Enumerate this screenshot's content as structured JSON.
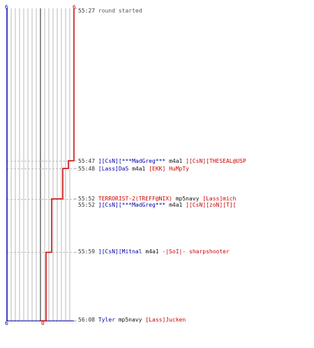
{
  "colors": {
    "team1": "#0000aa",
    "team2": "#cc0000",
    "grid": "#b8b8b8",
    "center": "#666666",
    "dashed": "#c0c0c0",
    "time": "#333333"
  },
  "axis": {
    "top_left": "6",
    "top_right": "6",
    "bottom_left": "6",
    "bottom_right": "0"
  },
  "start_event": {
    "time": "55:27",
    "text": "round started"
  },
  "events": [
    {
      "time": "55:47",
      "killer": "][CsN][***MadGreg***",
      "weapon": "m4a1",
      "victim": "][CsN][THESEAL@USP",
      "killer_team": "blue",
      "victim_team": "red"
    },
    {
      "time": "55:48",
      "killer": "[Lass]DaS",
      "weapon": "m4a1",
      "victim": "[EKK] HuMpTy",
      "killer_team": "blue",
      "victim_team": "red"
    },
    {
      "time": "55:52",
      "killer": "TERRORIST-2(TREFF@NIX)",
      "weapon": "mp5navy",
      "victim": "[Lass]mich",
      "killer_team": "red",
      "victim_team": "red"
    },
    {
      "time": "55:52",
      "killer": "][CsN][***MadGreg***",
      "weapon": "m4a1",
      "victim": "][CsN][zoN][T][",
      "killer_team": "blue",
      "victim_team": "red"
    },
    {
      "time": "55:59",
      "killer": "][CsN][Mitnal",
      "weapon": "m4a1",
      "victim": "-|SoI|- sharpshooter",
      "killer_team": "blue",
      "victim_team": "red"
    },
    {
      "time": "56:08",
      "killer": "Tyler",
      "weapon": "mp5navy",
      "victim": "[Lass]Jucken",
      "killer_team": "blue",
      "victim_team": "red"
    }
  ],
  "chart_data": {
    "type": "line",
    "title": "",
    "xlabel": "",
    "ylabel": "",
    "ylim": [
      0,
      6
    ],
    "x_time_ticks": [
      "55:27",
      "55:47",
      "55:48",
      "55:52",
      "55:52",
      "55:59",
      "56:08"
    ],
    "series": [
      {
        "name": "",
        "color": "#0000aa",
        "times": [
          "55:27",
          "56:08"
        ],
        "values": [
          6,
          6
        ]
      },
      {
        "name": "",
        "color": "#cc0000",
        "times": [
          "55:27",
          "55:47",
          "55:48",
          "55:52",
          "55:52",
          "55:59",
          "56:08"
        ],
        "values": [
          6,
          5,
          4,
          3,
          2,
          1,
          0
        ]
      }
    ],
    "grid": true
  }
}
